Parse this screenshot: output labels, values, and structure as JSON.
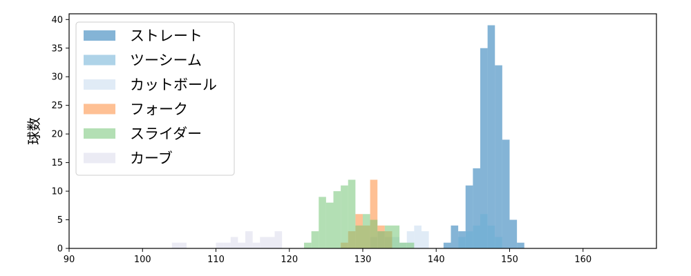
{
  "chart_data": {
    "type": "histogram",
    "title": "",
    "xlabel": "",
    "ylabel": "球数",
    "xlim": [
      90,
      170
    ],
    "ylim": [
      0,
      41
    ],
    "xticks": [
      90,
      100,
      110,
      120,
      130,
      140,
      150,
      160
    ],
    "yticks": [
      0,
      5,
      10,
      15,
      20,
      25,
      30,
      35,
      40
    ],
    "bin_width": 1,
    "grid": false,
    "legend_position": "top-left",
    "series": [
      {
        "name": "ストレート",
        "color": "#1f77b4",
        "bins": [
          [
            141,
            1
          ],
          [
            142,
            4
          ],
          [
            143,
            3
          ],
          [
            144,
            11
          ],
          [
            145,
            14
          ],
          [
            146,
            35
          ],
          [
            147,
            39
          ],
          [
            148,
            32
          ],
          [
            149,
            19
          ],
          [
            150,
            5
          ],
          [
            151,
            1
          ]
        ]
      },
      {
        "name": "ツーシーム",
        "color": "#6baed6",
        "bins": [
          [
            143,
            2
          ],
          [
            144,
            3
          ],
          [
            145,
            4
          ],
          [
            146,
            6
          ],
          [
            147,
            4
          ],
          [
            148,
            2
          ]
        ]
      },
      {
        "name": "カットボール",
        "color": "#c6dbef",
        "bins": [
          [
            131,
            2
          ],
          [
            132,
            3
          ],
          [
            133,
            2
          ],
          [
            134,
            2
          ],
          [
            135,
            1
          ],
          [
            136,
            3
          ],
          [
            137,
            4
          ],
          [
            138,
            3
          ]
        ]
      },
      {
        "name": "フォーク",
        "color": "#fd8d3c",
        "bins": [
          [
            127,
            1
          ],
          [
            128,
            3
          ],
          [
            129,
            6
          ],
          [
            130,
            4
          ],
          [
            131,
            12
          ],
          [
            132,
            4
          ],
          [
            133,
            3
          ]
        ]
      },
      {
        "name": "スライダー",
        "color": "#74c476",
        "bins": [
          [
            122,
            1
          ],
          [
            123,
            3
          ],
          [
            124,
            9
          ],
          [
            125,
            8
          ],
          [
            126,
            10
          ],
          [
            127,
            11
          ],
          [
            128,
            12
          ],
          [
            129,
            4
          ],
          [
            130,
            6
          ],
          [
            131,
            5
          ],
          [
            132,
            3
          ],
          [
            133,
            4
          ],
          [
            134,
            4
          ],
          [
            135,
            1
          ],
          [
            136,
            1
          ]
        ]
      },
      {
        "name": "カーブ",
        "color": "#dadaeb",
        "bins": [
          [
            104,
            1
          ],
          [
            105,
            1
          ],
          [
            110,
            1
          ],
          [
            111,
            1
          ],
          [
            112,
            2
          ],
          [
            113,
            1
          ],
          [
            114,
            3
          ],
          [
            115,
            1
          ],
          [
            116,
            2
          ],
          [
            117,
            2
          ],
          [
            118,
            3
          ]
        ]
      }
    ]
  }
}
